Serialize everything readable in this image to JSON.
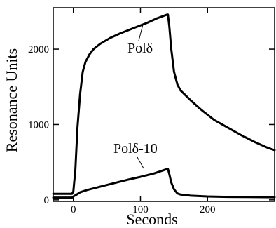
{
  "chart_data": {
    "type": "line",
    "xlabel": "Seconds",
    "ylabel": "Resonance Units",
    "xlim": [
      -30,
      300
    ],
    "ylim": [
      -20,
      2550
    ],
    "xticks": [
      0,
      100,
      200
    ],
    "yticks": [
      0,
      1000,
      2000
    ],
    "grid": false,
    "series": [
      {
        "name": "Polδ",
        "x": [
          -30,
          -2,
          0,
          3,
          6,
          10,
          14,
          18,
          24,
          30,
          40,
          55,
          70,
          90,
          110,
          125,
          140,
          141,
          143,
          146,
          150,
          155,
          160,
          175,
          190,
          210,
          230,
          250,
          270,
          290,
          300
        ],
        "y": [
          80,
          80,
          110,
          400,
          950,
          1400,
          1700,
          1830,
          1930,
          2000,
          2070,
          2150,
          2210,
          2280,
          2350,
          2410,
          2460,
          2460,
          2300,
          2000,
          1700,
          1530,
          1450,
          1320,
          1200,
          1060,
          960,
          860,
          770,
          690,
          660
        ]
      },
      {
        "name": "Polδ-10",
        "x": [
          -30,
          -2,
          0,
          5,
          10,
          20,
          40,
          60,
          80,
          100,
          120,
          140,
          141,
          143,
          146,
          150,
          155,
          160,
          175,
          200,
          230,
          260,
          300
        ],
        "y": [
          30,
          30,
          45,
          70,
          100,
          130,
          175,
          220,
          265,
          305,
          350,
          410,
          410,
          340,
          230,
          140,
          85,
          70,
          55,
          45,
          40,
          38,
          35
        ]
      }
    ],
    "annotations": [
      {
        "text": "Polδ",
        "series": 0
      },
      {
        "text": "Polδ-10",
        "series": 1
      }
    ]
  }
}
